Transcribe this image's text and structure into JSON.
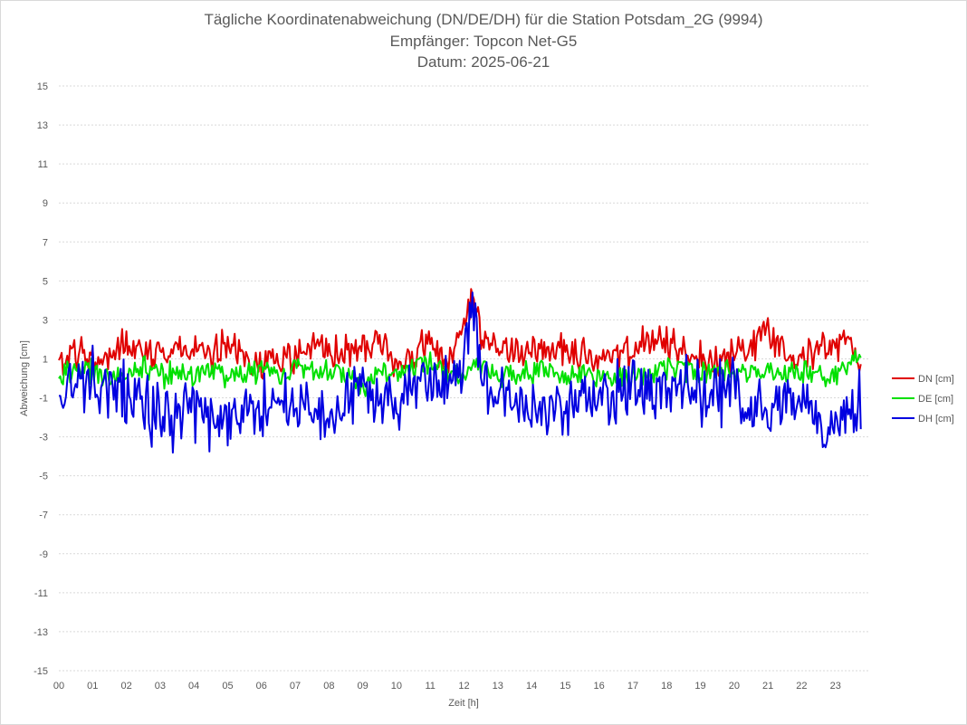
{
  "chart_data": {
    "type": "line",
    "title": "Tägliche Koordinatenabweichung (DN/DE/DH) für die Station Potsdam_2G (9994)",
    "subtitle_lines": [
      "Empfänger: Topcon Net-G5",
      "Datum: 2025-06-21"
    ],
    "xlabel": "Zeit [h]",
    "ylabel": "Abweichung [cm]",
    "x_ticks": [
      "00",
      "01",
      "02",
      "03",
      "04",
      "05",
      "06",
      "07",
      "08",
      "09",
      "10",
      "11",
      "12",
      "13",
      "14",
      "15",
      "16",
      "17",
      "18",
      "19",
      "20",
      "21",
      "22",
      "23"
    ],
    "y_ticks": [
      15,
      13,
      11,
      9,
      7,
      5,
      3,
      1,
      -1,
      -3,
      -5,
      -7,
      -9,
      -11,
      -13,
      -15
    ],
    "ylim": [
      -15,
      15
    ],
    "xlim": [
      0,
      23.75
    ],
    "grid": "horizontal dotted",
    "legend_position": "right",
    "x_hours": [
      0.0,
      0.5,
      1.0,
      1.5,
      2.0,
      2.5,
      3.0,
      3.5,
      4.0,
      4.5,
      5.0,
      5.5,
      6.0,
      6.5,
      7.0,
      7.5,
      8.0,
      8.5,
      9.0,
      9.5,
      10.0,
      10.5,
      11.0,
      11.5,
      12.0,
      12.25,
      12.5,
      13.0,
      13.5,
      14.0,
      14.5,
      15.0,
      15.5,
      16.0,
      16.5,
      17.0,
      17.5,
      18.0,
      18.5,
      19.0,
      19.5,
      20.0,
      20.5,
      21.0,
      21.5,
      22.0,
      22.5,
      23.0,
      23.5,
      23.7
    ],
    "series": [
      {
        "name": "DN [cm]",
        "color": "#e00000",
        "values": [
          0.6,
          1.4,
          0.9,
          1.2,
          1.8,
          1.6,
          1.3,
          1.5,
          1.4,
          1.2,
          1.6,
          1.1,
          0.8,
          1.0,
          0.9,
          1.8,
          1.2,
          1.4,
          1.5,
          1.9,
          0.7,
          1.1,
          2.1,
          0.6,
          2.4,
          4.2,
          2.0,
          1.6,
          1.3,
          1.5,
          1.4,
          1.6,
          1.2,
          1.0,
          0.8,
          1.6,
          1.9,
          1.7,
          1.4,
          1.1,
          0.9,
          1.3,
          1.6,
          2.5,
          1.6,
          1.2,
          1.4,
          1.6,
          2.0,
          0.1
        ],
        "noise": 0.7
      },
      {
        "name": "DE [cm]",
        "color": "#00e000",
        "values": [
          0.2,
          0.4,
          0.3,
          0.1,
          0.2,
          0.6,
          0.1,
          0.3,
          0.2,
          0.4,
          0.1,
          0.3,
          0.5,
          0.2,
          0.4,
          0.6,
          0.2,
          0.3,
          -0.5,
          0.4,
          0.2,
          0.6,
          0.8,
          0.3,
          0.2,
          0.4,
          0.6,
          0.1,
          0.2,
          0.3,
          0.4,
          0.2,
          0.3,
          0.1,
          0.2,
          0.0,
          0.3,
          0.5,
          0.4,
          0.2,
          0.3,
          0.4,
          0.2,
          0.5,
          0.3,
          0.4,
          0.3,
          0.2,
          0.6,
          1.4
        ],
        "noise": 0.5
      },
      {
        "name": "DH [cm]",
        "color": "#0000e0",
        "values": [
          -0.5,
          -0.6,
          0.0,
          -0.8,
          -0.7,
          -1.4,
          -1.9,
          -2.2,
          -1.6,
          -2.0,
          -2.1,
          -1.8,
          -1.5,
          -1.2,
          -1.4,
          -1.8,
          -2.0,
          -1.2,
          -0.6,
          -0.8,
          -1.1,
          -0.5,
          -0.3,
          -0.4,
          1.2,
          4.5,
          0.2,
          -0.6,
          -1.3,
          -1.6,
          -1.4,
          -1.8,
          -1.3,
          -0.9,
          -0.7,
          -0.2,
          -0.5,
          -0.6,
          -0.4,
          -0.6,
          -0.9,
          -0.7,
          -1.2,
          -1.6,
          -1.4,
          -1.3,
          -1.8,
          -2.5,
          -1.6,
          -1.0
        ],
        "noise": 1.3
      }
    ]
  }
}
